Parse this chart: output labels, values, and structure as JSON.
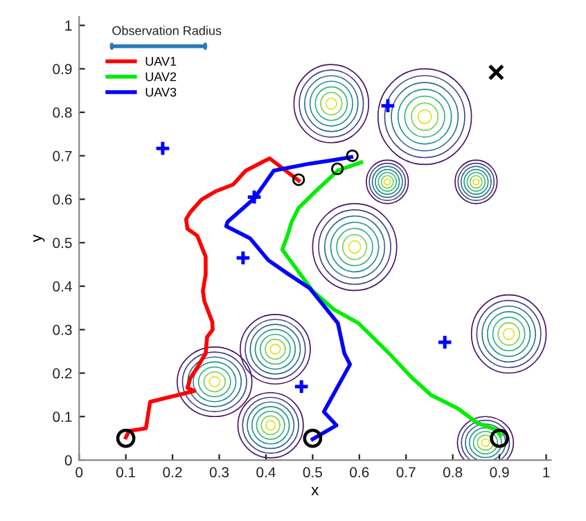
{
  "chart_data": {
    "type": "line",
    "xlabel": "x",
    "ylabel": "y",
    "xlim": [
      0,
      1.01
    ],
    "ylim": [
      0,
      1.02
    ],
    "xticks": [
      0,
      0.1,
      0.2,
      0.3,
      0.4,
      0.5,
      0.6,
      0.7,
      0.8,
      0.9,
      1
    ],
    "yticks": [
      0,
      0.1,
      0.2,
      0.3,
      0.4,
      0.5,
      0.6,
      0.7,
      0.8,
      0.9,
      1
    ],
    "legend": "top left",
    "series": [
      {
        "name": "UAV1",
        "color": "#ff0000",
        "x": [
          0.1,
          0.107,
          0.143,
          0.152,
          0.247,
          0.232,
          0.238,
          0.253,
          0.265,
          0.271,
          0.274,
          0.286,
          0.285,
          0.268,
          0.265,
          0.271,
          0.271,
          0.265,
          0.253,
          0.232,
          0.229,
          0.238,
          0.262,
          0.292,
          0.33,
          0.357,
          0.408,
          0.47
        ],
        "values": [
          0.052,
          0.067,
          0.073,
          0.134,
          0.159,
          0.166,
          0.188,
          0.213,
          0.235,
          0.245,
          0.283,
          0.3,
          0.318,
          0.366,
          0.389,
          0.427,
          0.468,
          0.484,
          0.516,
          0.532,
          0.554,
          0.57,
          0.599,
          0.618,
          0.634,
          0.666,
          0.694,
          0.643
        ]
      },
      {
        "name": "UAV2",
        "color": "#00ee00",
        "x": [
          0.902,
          0.893,
          0.851,
          0.812,
          0.753,
          0.714,
          0.664,
          0.598,
          0.545,
          0.5,
          0.435,
          0.446,
          0.455,
          0.47,
          0.506,
          0.554,
          0.604
        ],
        "values": [
          0.057,
          0.07,
          0.086,
          0.118,
          0.15,
          0.188,
          0.245,
          0.315,
          0.347,
          0.389,
          0.484,
          0.516,
          0.548,
          0.58,
          0.618,
          0.666,
          0.685
        ]
      },
      {
        "name": "UAV3",
        "color": "#0000ff",
        "x": [
          0.5,
          0.551,
          0.524,
          0.58,
          0.568,
          0.554,
          0.494,
          0.449,
          0.405,
          0.366,
          0.315,
          0.318,
          0.375,
          0.396,
          0.417,
          0.494,
          0.545,
          0.583
        ],
        "values": [
          0.048,
          0.08,
          0.111,
          0.22,
          0.245,
          0.315,
          0.395,
          0.427,
          0.46,
          0.51,
          0.538,
          0.548,
          0.602,
          0.634,
          0.666,
          0.682,
          0.69,
          0.697
        ]
      },
      {
        "type": "line",
        "name": "Observation Radius",
        "color": "#2a7ab8",
        "x": [
          0.07,
          0.27
        ],
        "values": [
          0.952,
          0.952
        ],
        "errors": [
          0.008,
          0.008
        ]
      },
      {
        "type": "scatter",
        "color": "#0000ff",
        "marker": "cross",
        "x": [
          0.179,
          0.375,
          0.351,
          0.476,
          0.661,
          0.783
        ],
        "values": [
          0.717,
          0.605,
          0.465,
          0.169,
          0.815,
          0.271
        ]
      },
      {
        "type": "scatter",
        "color": "#000000",
        "marker": "circle",
        "sizes": [
          1,
          1,
          1
        ],
        "x": [
          0.1,
          0.5,
          0.9
        ],
        "values": [
          0.05,
          0.05,
          0.05
        ]
      },
      {
        "type": "scatter",
        "color": "#000000",
        "marker": "circle",
        "sizes": [
          0.45,
          0.45,
          0.45
        ],
        "x": [
          0.47,
          0.553,
          0.585
        ],
        "values": [
          0.645,
          0.67,
          0.7
        ]
      },
      {
        "type": "scatter",
        "color": "#000000",
        "marker": "x",
        "x": [
          0.893
        ],
        "values": [
          0.892
        ]
      }
    ]
  }
}
